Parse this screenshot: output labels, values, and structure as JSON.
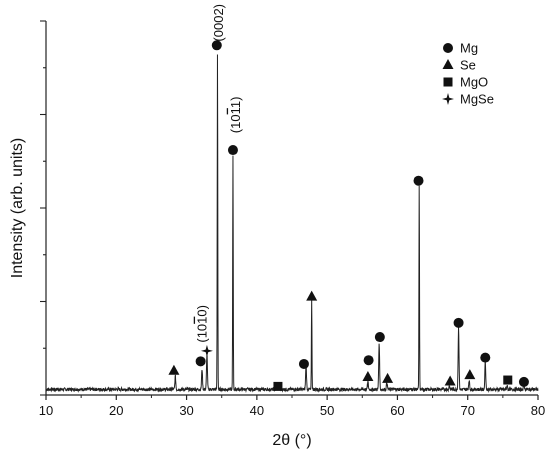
{
  "chart_data": {
    "type": "line",
    "title": "",
    "xlabel": "2θ (°)",
    "ylabel": "Intensity (arb. units)",
    "xlim": [
      10,
      80
    ],
    "ylim": [
      0,
      100
    ],
    "x_ticks": [
      10,
      20,
      30,
      40,
      50,
      60,
      70,
      80
    ],
    "y_tick_labels_shown": false,
    "grid": false,
    "legend_placement": "top-right",
    "legend": [
      {
        "label": "Mg",
        "marker": "circle"
      },
      {
        "label": "Se",
        "marker": "triangle"
      },
      {
        "label": "MgO",
        "marker": "square"
      },
      {
        "label": "MgSe",
        "marker": "star4"
      }
    ],
    "baseline": 1.5,
    "series": [
      {
        "peaks": [
          {
            "x": 28.4,
            "y": 5
          },
          {
            "x": 32.2,
            "y": 7
          },
          {
            "x": 32.9,
            "y": 11
          },
          {
            "x": 34.4,
            "y": 92
          },
          {
            "x": 36.6,
            "y": 64
          },
          {
            "x": 43.0,
            "y": 2.5
          },
          {
            "x": 47.0,
            "y": 8
          },
          {
            "x": 47.8,
            "y": 26
          },
          {
            "x": 55.8,
            "y": 3.5
          },
          {
            "x": 57.4,
            "y": 14
          },
          {
            "x": 58.5,
            "y": 3.5
          },
          {
            "x": 63.1,
            "y": 56
          },
          {
            "x": 67.4,
            "y": 2.5
          },
          {
            "x": 68.7,
            "y": 18
          },
          {
            "x": 70.2,
            "y": 4
          },
          {
            "x": 72.5,
            "y": 9
          },
          {
            "x": 75.6,
            "y": 2.5
          },
          {
            "x": 78.0,
            "y": 3
          }
        ]
      }
    ],
    "phase_markers": [
      {
        "phase": "Se",
        "marker": "triangle",
        "x": 28.2,
        "y": 6.5
      },
      {
        "phase": "Mg",
        "marker": "circle",
        "x": 32.0,
        "y": 9.0
      },
      {
        "phase": "MgSe",
        "marker": "star4",
        "x": 32.9,
        "y": 11.8
      },
      {
        "phase": "Mg",
        "marker": "circle",
        "x": 34.3,
        "y": 93.5
      },
      {
        "phase": "Mg",
        "marker": "circle",
        "x": 36.6,
        "y": 65.5
      },
      {
        "phase": "MgO",
        "marker": "square",
        "x": 43.0,
        "y": 2.3
      },
      {
        "phase": "Mg",
        "marker": "circle",
        "x": 46.7,
        "y": 8.3
      },
      {
        "phase": "Se",
        "marker": "triangle",
        "x": 47.8,
        "y": 26.3
      },
      {
        "phase": "Mg",
        "marker": "circle",
        "x": 55.9,
        "y": 9.3
      },
      {
        "phase": "Se",
        "marker": "triangle",
        "x": 55.8,
        "y": 4.8
      },
      {
        "phase": "Mg",
        "marker": "circle",
        "x": 57.5,
        "y": 15.5
      },
      {
        "phase": "Se",
        "marker": "triangle",
        "x": 58.6,
        "y": 4.3
      },
      {
        "phase": "Mg",
        "marker": "circle",
        "x": 63.0,
        "y": 57.3
      },
      {
        "phase": "Se",
        "marker": "triangle",
        "x": 67.5,
        "y": 3.6
      },
      {
        "phase": "Mg",
        "marker": "circle",
        "x": 68.7,
        "y": 19.3
      },
      {
        "phase": "Se",
        "marker": "triangle",
        "x": 70.3,
        "y": 5.3
      },
      {
        "phase": "Mg",
        "marker": "circle",
        "x": 72.5,
        "y": 10.0
      },
      {
        "phase": "MgO",
        "marker": "square",
        "x": 75.7,
        "y": 4.0
      },
      {
        "phase": "Mg",
        "marker": "circle",
        "x": 78.0,
        "y": 3.5
      }
    ],
    "annotations": [
      {
        "text": "(0002)",
        "x": 34.6,
        "y": 94.5
      },
      {
        "text": "(10",
        "bar": "1",
        "after": "1)",
        "x": 37.0,
        "y": 70.0
      },
      {
        "text": "(10",
        "bar": "1",
        "after": "0)",
        "x": 32.3,
        "y": 14.0
      }
    ]
  }
}
